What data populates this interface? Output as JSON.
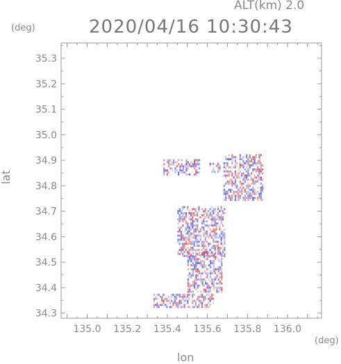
{
  "header": {
    "alt_label": "ALT(km) 2.0",
    "datetime": "2020/04/16 10:30:43"
  },
  "chart_data": {
    "type": "heatmap",
    "title": "2020/04/16 10:30:43",
    "subtitle": "ALT(km) 2.0",
    "xlabel": "lon",
    "ylabel": "lat",
    "xunit": "(deg)",
    "yunit": "(deg)",
    "xlim": [
      134.87,
      136.17
    ],
    "ylim": [
      34.28,
      35.36
    ],
    "xticks": [
      135.0,
      135.2,
      135.4,
      135.6,
      135.8,
      136.0
    ],
    "xtick_labels": [
      "135.0",
      "135.2",
      "135.4",
      "135.6",
      "135.8",
      "136.0"
    ],
    "yticks": [
      34.3,
      34.4,
      34.5,
      34.6,
      34.7,
      34.8,
      34.9,
      35.0,
      35.1,
      35.2,
      35.3
    ],
    "ytick_labels": [
      "34.3",
      "34.4",
      "34.5",
      "34.6",
      "34.7",
      "34.8",
      "34.9",
      "35.0",
      "35.1",
      "35.2",
      "35.3"
    ],
    "grid": false,
    "colors": {
      "positive": "#e05050",
      "negative": "#5060e0",
      "axis": "#999999"
    },
    "regions": [
      {
        "lon": [
          135.38,
          135.56
        ],
        "lat": [
          34.84,
          34.9
        ]
      },
      {
        "lon": [
          135.61,
          135.66
        ],
        "lat": [
          34.85,
          34.89
        ]
      },
      {
        "lon": [
          135.68,
          135.88
        ],
        "lat": [
          34.74,
          34.92
        ]
      },
      {
        "lon": [
          135.45,
          135.69
        ],
        "lat": [
          34.52,
          34.72
        ]
      },
      {
        "lon": [
          135.5,
          135.67
        ],
        "lat": [
          34.38,
          34.54
        ]
      },
      {
        "lon": [
          135.33,
          135.63
        ],
        "lat": [
          34.32,
          34.37
        ]
      }
    ]
  }
}
